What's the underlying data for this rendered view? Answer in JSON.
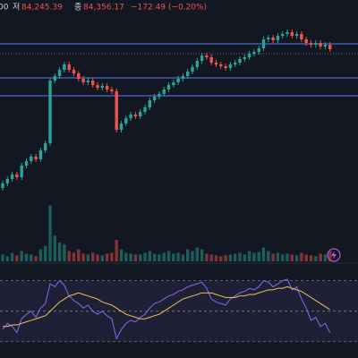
{
  "header": {
    "cut": "00",
    "low_label": "저",
    "low": "84,245.39",
    "close_label": "종",
    "close": "84,356.17",
    "change": "−172.49 (−0.20%)"
  },
  "chart_data": [
    {
      "type": "candlestick",
      "ylim": [
        79700,
        85500
      ],
      "up_color": "#26a69a",
      "down_color": "#ef5350",
      "price_lines": [
        {
          "value": 84520,
          "color": "#5b7bf0"
        },
        {
          "value": 84300,
          "color": "#6a6d78",
          "dashed": true
        },
        {
          "value": 83760,
          "color": "#5b7bf0"
        },
        {
          "value": 83360,
          "color": "#5b7bf0"
        }
      ],
      "candles": [
        [
          81300,
          81460,
          81240,
          81400
        ],
        [
          81400,
          81560,
          81340,
          81500
        ],
        [
          81500,
          81660,
          81440,
          81600
        ],
        [
          81600,
          81660,
          81480,
          81540
        ],
        [
          81540,
          81860,
          81480,
          81800
        ],
        [
          81800,
          81960,
          81740,
          81900
        ],
        [
          81900,
          82060,
          81840,
          82000
        ],
        [
          82000,
          82060,
          81880,
          81940
        ],
        [
          81940,
          82200,
          81880,
          82140
        ],
        [
          82140,
          82360,
          82080,
          82300
        ],
        [
          82300,
          83760,
          82240,
          83700
        ],
        [
          83700,
          83860,
          83640,
          83800
        ],
        [
          83800,
          84000,
          83740,
          83940
        ],
        [
          83940,
          84120,
          83880,
          84060
        ],
        [
          84060,
          84120,
          83880,
          83940
        ],
        [
          83940,
          84000,
          83800,
          83860
        ],
        [
          83860,
          83920,
          83680,
          83740
        ],
        [
          83740,
          83800,
          83600,
          83660
        ],
        [
          83660,
          83760,
          83600,
          83700
        ],
        [
          83700,
          83760,
          83540,
          83600
        ],
        [
          83600,
          83660,
          83480,
          83540
        ],
        [
          83540,
          83640,
          83480,
          83580
        ],
        [
          83580,
          83640,
          83440,
          83500
        ],
        [
          83500,
          83560,
          83400,
          83460
        ],
        [
          83460,
          83520,
          82540,
          82600
        ],
        [
          82600,
          82800,
          82540,
          82740
        ],
        [
          82740,
          82920,
          82680,
          82860
        ],
        [
          82860,
          83000,
          82800,
          82940
        ],
        [
          82940,
          83000,
          82840,
          82900
        ],
        [
          82900,
          83060,
          82840,
          83000
        ],
        [
          83000,
          83160,
          82940,
          83100
        ],
        [
          83100,
          83320,
          83040,
          83260
        ],
        [
          83260,
          83400,
          83200,
          83340
        ],
        [
          83340,
          83460,
          83280,
          83400
        ],
        [
          83400,
          83560,
          83340,
          83500
        ],
        [
          83500,
          83660,
          83440,
          83600
        ],
        [
          83600,
          83720,
          83540,
          83660
        ],
        [
          83660,
          83800,
          83600,
          83740
        ],
        [
          83740,
          83860,
          83680,
          83800
        ],
        [
          83800,
          83960,
          83740,
          83900
        ],
        [
          83900,
          84060,
          83840,
          84000
        ],
        [
          84000,
          84200,
          83940,
          84140
        ],
        [
          84140,
          84320,
          84080,
          84260
        ],
        [
          84260,
          84320,
          84160,
          84220
        ],
        [
          84220,
          84280,
          84040,
          84100
        ],
        [
          84100,
          84160,
          84000,
          84060
        ],
        [
          84060,
          84120,
          83960,
          84020
        ],
        [
          84020,
          84080,
          83920,
          83980
        ],
        [
          83980,
          84120,
          83920,
          84060
        ],
        [
          84060,
          84160,
          84000,
          84100
        ],
        [
          84100,
          84240,
          84040,
          84180
        ],
        [
          84180,
          84280,
          84120,
          84220
        ],
        [
          84220,
          84360,
          84160,
          84300
        ],
        [
          84300,
          84400,
          84240,
          84340
        ],
        [
          84340,
          84480,
          84280,
          84420
        ],
        [
          84420,
          84680,
          84360,
          84620
        ],
        [
          84620,
          84720,
          84560,
          84660
        ],
        [
          84660,
          84720,
          84540,
          84600
        ],
        [
          84600,
          84760,
          84540,
          84700
        ],
        [
          84700,
          84800,
          84640,
          84740
        ],
        [
          84740,
          84840,
          84680,
          84780
        ],
        [
          84780,
          84840,
          84640,
          84700
        ],
        [
          84700,
          84800,
          84640,
          84740
        ],
        [
          84740,
          84800,
          84560,
          84620
        ],
        [
          84620,
          84680,
          84480,
          84540
        ],
        [
          84540,
          84600,
          84440,
          84500
        ],
        [
          84500,
          84600,
          84440,
          84540
        ],
        [
          84540,
          84600,
          84400,
          84460
        ],
        [
          84460,
          84560,
          84400,
          84500
        ],
        [
          84500,
          84560,
          84340,
          84400
        ]
      ]
    },
    {
      "type": "bar",
      "ylim": [
        0,
        70
      ],
      "values": [
        8,
        6,
        10,
        7,
        12,
        9,
        8,
        6,
        14,
        18,
        65,
        30,
        22,
        20,
        12,
        10,
        14,
        9,
        8,
        10,
        8,
        7,
        9,
        10,
        25,
        14,
        10,
        9,
        8,
        8,
        10,
        12,
        9,
        8,
        10,
        12,
        9,
        10,
        8,
        14,
        12,
        16,
        14,
        9,
        8,
        7,
        6,
        7,
        8,
        9,
        10,
        8,
        12,
        10,
        11,
        16,
        12,
        9,
        10,
        8,
        9,
        8,
        7,
        10,
        8,
        7,
        6,
        9,
        8,
        12
      ]
    },
    {
      "type": "line",
      "ylim": [
        24,
        78
      ],
      "levels": [
        30,
        50,
        70
      ],
      "band_color": "#7e57c2",
      "series": [
        {
          "color": "#7e6ef0",
          "values": [
            38,
            42,
            40,
            36,
            45,
            48,
            50,
            46,
            52,
            55,
            68,
            66,
            70,
            67,
            60,
            57,
            55,
            52,
            54,
            50,
            48,
            50,
            47,
            45,
            32,
            38,
            42,
            44,
            43,
            46,
            48,
            52,
            55,
            56,
            58,
            60,
            61,
            63,
            64,
            66,
            67,
            68,
            69,
            65,
            58,
            56,
            55,
            54,
            58,
            60,
            62,
            63,
            65,
            64,
            66,
            70,
            69,
            66,
            68,
            70,
            71,
            64,
            66,
            58,
            52,
            44,
            46,
            40,
            42,
            36
          ]
        },
        {
          "color": "#e8c65a",
          "values": [
            40,
            40,
            41,
            41,
            42,
            43,
            44,
            45,
            46,
            47,
            50,
            53,
            56,
            58,
            60,
            61,
            62,
            61,
            60,
            59,
            58,
            56,
            55,
            54,
            52,
            50,
            48,
            47,
            46,
            45,
            45,
            46,
            47,
            48,
            50,
            52,
            54,
            56,
            58,
            59,
            60,
            61,
            62,
            62,
            62,
            61,
            60,
            59,
            59,
            59,
            60,
            60,
            61,
            61,
            62,
            63,
            64,
            64,
            65,
            65,
            66,
            65,
            64,
            63,
            61,
            59,
            57,
            55,
            53,
            51
          ]
        }
      ]
    }
  ]
}
